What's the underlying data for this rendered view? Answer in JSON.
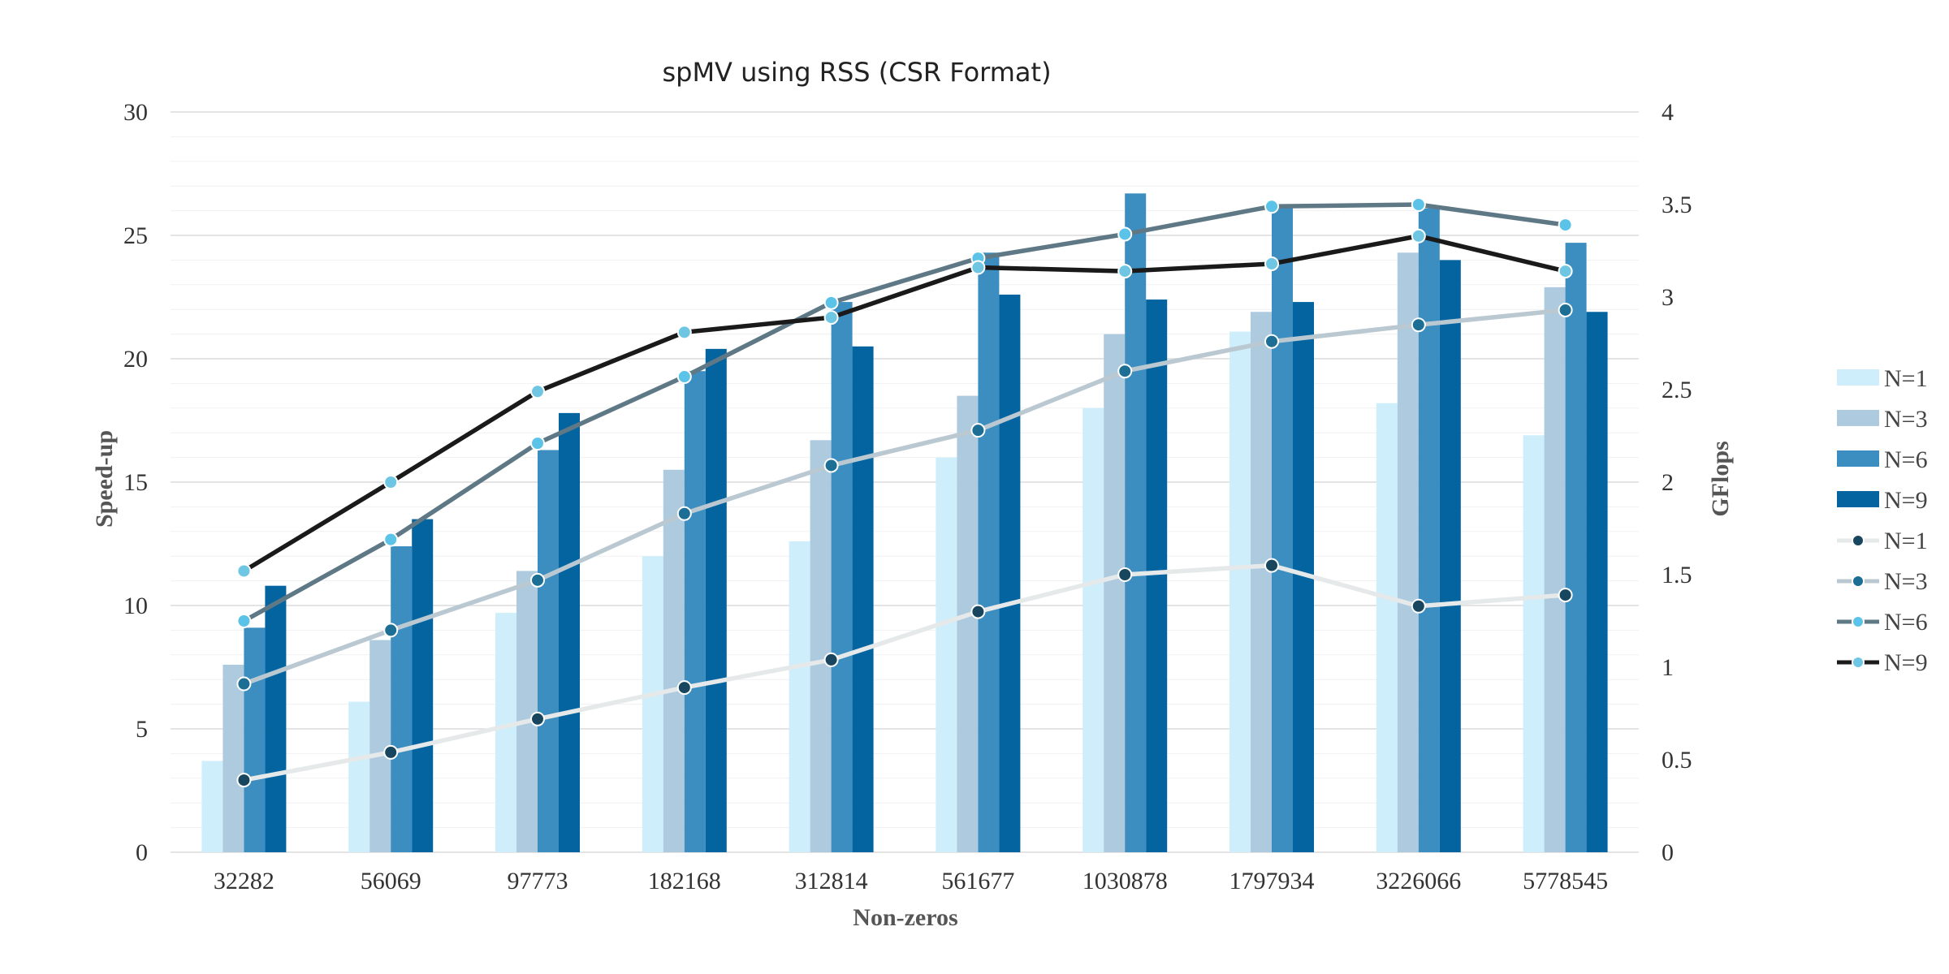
{
  "chart_data": {
    "type": "bar",
    "title": "spMV using RSS (CSR Format)",
    "xlabel": "Non-zeros",
    "ylabel": "Speed-up",
    "y2label": "GFlops",
    "categories": [
      "32282",
      "56069",
      "97773",
      "182168",
      "312814",
      "561677",
      "1030878",
      "1797934",
      "3226066",
      "5778545"
    ],
    "ylim": [
      0,
      30
    ],
    "yticks": [
      0,
      5,
      10,
      15,
      20,
      25,
      30
    ],
    "y2lim": [
      0,
      4
    ],
    "y2ticks": [
      0,
      0.5,
      1,
      1.5,
      2,
      2.5,
      3,
      3.5,
      4
    ],
    "y2tick_labels": [
      "0",
      "0.5",
      "1",
      "1.5",
      "2",
      "2.5",
      "3",
      "3.5",
      "4"
    ],
    "grid": true,
    "legend_position": "right",
    "bar_series": [
      {
        "name": "N=1",
        "color": "#cdeefa",
        "values": [
          3.7,
          6.1,
          9.7,
          12.0,
          12.6,
          16.0,
          18.0,
          21.1,
          18.2,
          16.9
        ]
      },
      {
        "name": "N=3",
        "color": "#adcadf",
        "values": [
          7.6,
          8.6,
          11.4,
          15.5,
          16.7,
          18.5,
          21.0,
          21.9,
          24.3,
          22.9
        ]
      },
      {
        "name": "N=6",
        "color": "#3c8dc0",
        "values": [
          9.1,
          12.4,
          16.3,
          19.5,
          22.3,
          24.3,
          26.7,
          26.2,
          26.1,
          24.7
        ]
      },
      {
        "name": "N=9",
        "color": "#0364a0",
        "values": [
          10.8,
          13.5,
          17.8,
          20.4,
          20.5,
          22.6,
          22.4,
          22.3,
          24.0,
          21.9
        ]
      }
    ],
    "line_series": [
      {
        "name": "N=1",
        "color": "#e6e9ea",
        "marker": "#17465e",
        "values": [
          0.39,
          0.54,
          0.72,
          0.89,
          1.04,
          1.3,
          1.5,
          1.55,
          1.33,
          1.39
        ]
      },
      {
        "name": "N=3",
        "color": "#bac9d1",
        "marker": "#1c6e94",
        "values": [
          0.91,
          1.2,
          1.47,
          1.83,
          2.09,
          2.28,
          2.6,
          2.76,
          2.85,
          2.93
        ]
      },
      {
        "name": "N=6",
        "color": "#5f7886",
        "marker": "#5bc2e8",
        "values": [
          1.25,
          1.69,
          2.21,
          2.57,
          2.97,
          3.21,
          3.34,
          3.49,
          3.5,
          3.39
        ]
      },
      {
        "name": "N=9",
        "color": "#1a1a1a",
        "marker": "#6ec6e3",
        "values": [
          1.52,
          2.0,
          2.49,
          2.81,
          2.89,
          3.16,
          3.14,
          3.18,
          3.33,
          3.14
        ]
      }
    ]
  }
}
